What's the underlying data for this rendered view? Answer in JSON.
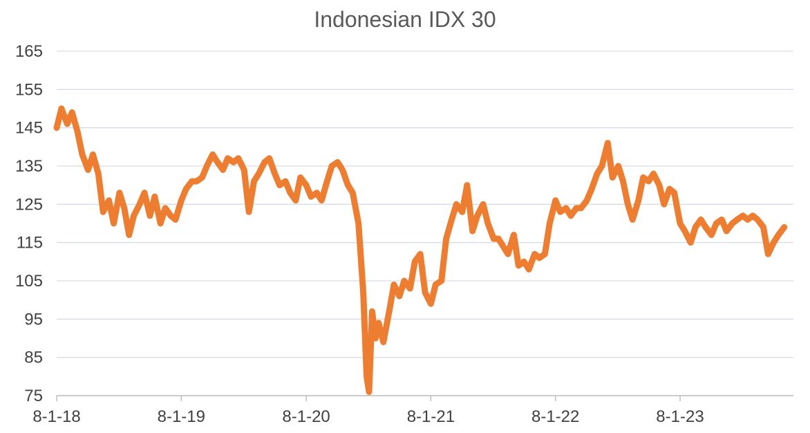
{
  "chart_data": {
    "type": "line",
    "title": "Indonesian IDX 30",
    "xlabel": "",
    "ylabel": "",
    "ylim": [
      75,
      165
    ],
    "yticks": [
      75,
      85,
      95,
      105,
      115,
      125,
      135,
      145,
      155,
      165
    ],
    "xticks": [
      "8-1-18",
      "8-1-19",
      "8-1-20",
      "8-1-21",
      "8-1-22",
      "8-1-23"
    ],
    "grid": true,
    "legend": "none",
    "series": [
      {
        "color": "#ED7D31",
        "points": [
          [
            "2018-08-01",
            145
          ],
          [
            "2018-08-15",
            150
          ],
          [
            "2018-09-01",
            146
          ],
          [
            "2018-09-15",
            149
          ],
          [
            "2018-10-01",
            144
          ],
          [
            "2018-10-15",
            138
          ],
          [
            "2018-11-01",
            134
          ],
          [
            "2018-11-15",
            138
          ],
          [
            "2018-12-01",
            133
          ],
          [
            "2018-12-15",
            123
          ],
          [
            "2019-01-01",
            126
          ],
          [
            "2019-01-15",
            120
          ],
          [
            "2019-02-01",
            128
          ],
          [
            "2019-02-15",
            124
          ],
          [
            "2019-03-01",
            117
          ],
          [
            "2019-03-15",
            122
          ],
          [
            "2019-04-01",
            125
          ],
          [
            "2019-04-15",
            128
          ],
          [
            "2019-05-01",
            122
          ],
          [
            "2019-05-15",
            127
          ],
          [
            "2019-06-01",
            120
          ],
          [
            "2019-06-15",
            124
          ],
          [
            "2019-07-01",
            122
          ],
          [
            "2019-07-15",
            121
          ],
          [
            "2019-08-01",
            126
          ],
          [
            "2019-08-15",
            129
          ],
          [
            "2019-09-01",
            131
          ],
          [
            "2019-09-15",
            131
          ],
          [
            "2019-10-01",
            132
          ],
          [
            "2019-10-15",
            135
          ],
          [
            "2019-11-01",
            138
          ],
          [
            "2019-11-15",
            136
          ],
          [
            "2019-12-01",
            134
          ],
          [
            "2019-12-15",
            137
          ],
          [
            "2020-01-01",
            136
          ],
          [
            "2020-01-15",
            137
          ],
          [
            "2020-02-01",
            134
          ],
          [
            "2020-02-15",
            123
          ],
          [
            "2020-03-01",
            131
          ],
          [
            "2020-03-15",
            133
          ],
          [
            "2020-04-01",
            136
          ],
          [
            "2020-04-15",
            137
          ],
          [
            "2020-05-01",
            133
          ],
          [
            "2020-05-15",
            130
          ],
          [
            "2020-06-01",
            131
          ],
          [
            "2020-06-15",
            128
          ],
          [
            "2020-07-01",
            126
          ],
          [
            "2020-07-15",
            132
          ],
          [
            "2020-08-01",
            130
          ],
          [
            "2020-08-15",
            127
          ],
          [
            "2020-09-01",
            128
          ],
          [
            "2020-09-15",
            126
          ],
          [
            "2020-10-01",
            131
          ],
          [
            "2020-10-15",
            135
          ],
          [
            "2020-11-01",
            136
          ],
          [
            "2020-11-15",
            134
          ],
          [
            "2020-12-01",
            130
          ],
          [
            "2020-12-15",
            128
          ],
          [
            "2021-01-01",
            120
          ],
          [
            "2021-01-15",
            102
          ],
          [
            "2021-01-25",
            80
          ],
          [
            "2021-02-01",
            76
          ],
          [
            "2021-02-10",
            97
          ],
          [
            "2021-02-20",
            90
          ],
          [
            "2021-03-01",
            94
          ],
          [
            "2021-03-15",
            89
          ],
          [
            "2021-04-01",
            97
          ],
          [
            "2021-04-15",
            104
          ],
          [
            "2021-05-01",
            101
          ],
          [
            "2021-05-15",
            105
          ],
          [
            "2021-06-01",
            103
          ],
          [
            "2021-06-15",
            110
          ],
          [
            "2021-07-01",
            112
          ],
          [
            "2021-07-15",
            102
          ],
          [
            "2021-08-01",
            99
          ],
          [
            "2021-08-15",
            104
          ],
          [
            "2021-09-01",
            105
          ],
          [
            "2021-09-15",
            116
          ],
          [
            "2021-10-01",
            121
          ],
          [
            "2021-10-15",
            125
          ],
          [
            "2021-11-01",
            123
          ],
          [
            "2021-11-15",
            130
          ],
          [
            "2021-12-01",
            118
          ],
          [
            "2021-12-15",
            122
          ],
          [
            "2022-01-01",
            125
          ],
          [
            "2022-01-15",
            120
          ],
          [
            "2022-02-01",
            116
          ],
          [
            "2022-02-15",
            116
          ],
          [
            "2022-03-01",
            114
          ],
          [
            "2022-03-15",
            112
          ],
          [
            "2022-04-01",
            117
          ],
          [
            "2022-04-15",
            109
          ],
          [
            "2022-05-01",
            110
          ],
          [
            "2022-05-15",
            108
          ],
          [
            "2022-06-01",
            112
          ],
          [
            "2022-06-15",
            111
          ],
          [
            "2022-07-01",
            112
          ],
          [
            "2022-07-15",
            120
          ],
          [
            "2022-08-01",
            126
          ],
          [
            "2022-08-15",
            123
          ],
          [
            "2022-09-01",
            124
          ],
          [
            "2022-09-15",
            122
          ],
          [
            "2022-10-01",
            124
          ],
          [
            "2022-10-15",
            124
          ],
          [
            "2022-11-01",
            126
          ],
          [
            "2022-11-15",
            129
          ],
          [
            "2022-12-01",
            133
          ],
          [
            "2022-12-15",
            135
          ],
          [
            "2023-01-01",
            141
          ],
          [
            "2023-01-15",
            132
          ],
          [
            "2023-02-01",
            135
          ],
          [
            "2023-02-15",
            131
          ],
          [
            "2023-03-01",
            125
          ],
          [
            "2023-03-15",
            121
          ],
          [
            "2023-04-01",
            126
          ],
          [
            "2023-04-15",
            132
          ],
          [
            "2023-05-01",
            131
          ],
          [
            "2023-05-15",
            133
          ],
          [
            "2023-06-01",
            130
          ],
          [
            "2023-06-15",
            125
          ],
          [
            "2023-07-01",
            129
          ],
          [
            "2023-07-15",
            128
          ],
          [
            "2023-08-01",
            120
          ],
          [
            "2023-08-15",
            118
          ],
          [
            "2023-09-01",
            115
          ],
          [
            "2023-09-15",
            119
          ],
          [
            "2023-10-01",
            121
          ],
          [
            "2023-10-15",
            119
          ],
          [
            "2023-11-01",
            117
          ],
          [
            "2023-11-15",
            120
          ],
          [
            "2023-12-01",
            121
          ],
          [
            "2023-12-15",
            118
          ],
          [
            "2024-01-01",
            120
          ],
          [
            "2024-01-15",
            121
          ],
          [
            "2024-02-01",
            122
          ],
          [
            "2024-02-15",
            121
          ],
          [
            "2024-03-01",
            122
          ],
          [
            "2024-03-15",
            121
          ],
          [
            "2024-04-01",
            119
          ],
          [
            "2024-04-15",
            112
          ],
          [
            "2024-05-01",
            115
          ],
          [
            "2024-05-15",
            117
          ],
          [
            "2024-06-01",
            119
          ]
        ]
      }
    ]
  }
}
